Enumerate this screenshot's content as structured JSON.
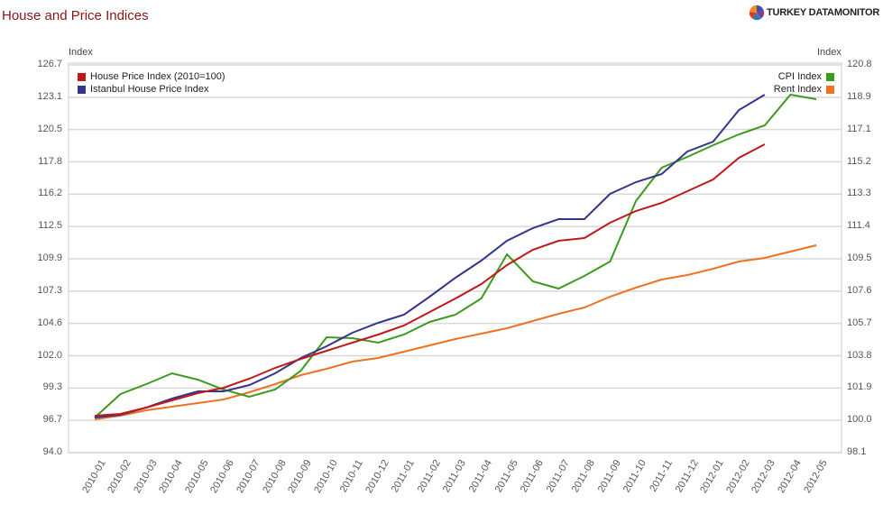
{
  "header": {
    "title": "House and Price Indices",
    "brand_part1": "TURKEY DATA ",
    "brand_part2": "MONITOR",
    "brand_icon": "pie-logo-icon"
  },
  "axes": {
    "left_title": "Index",
    "right_title": "Index",
    "left_ticks": [
      "126.7",
      "123.1",
      "120.5",
      "117.8",
      "116.2",
      "112.5",
      "109.9",
      "107.3",
      "104.6",
      "102.0",
      "99.3",
      "96.7",
      "94.0"
    ],
    "right_ticks": [
      "120.8",
      "118.9",
      "117.1",
      "115.2",
      "113.3",
      "111.4",
      "109.5",
      "107.6",
      "105.7",
      "103.8",
      "101.9",
      "100.0",
      "98.1"
    ]
  },
  "legend": {
    "left": [
      {
        "label": "House Price Index (2010=100)",
        "color": "#c0181a"
      },
      {
        "label": "Istanbul House Price Index",
        "color": "#34358c"
      }
    ],
    "right": [
      {
        "label": "CPI Index",
        "color": "#3c9a1c"
      },
      {
        "label": "Rent Index",
        "color": "#ee7220"
      }
    ]
  },
  "chart_data": {
    "type": "line",
    "title": "House and Price Indices",
    "xlabel": "",
    "ylabel": "Index",
    "ylabel_right": "Index",
    "ylim": [
      94.0,
      126.7
    ],
    "ylim_right": [
      98.1,
      120.8
    ],
    "grid": true,
    "legend_position": "top-left and top-right inside plot",
    "x": [
      "2010-01",
      "2010-02",
      "2010-03",
      "2010-04",
      "2010-05",
      "2010-06",
      "2010-07",
      "2010-08",
      "2010-09",
      "2010-10",
      "2010-11",
      "2010-12",
      "2011-01",
      "2011-02",
      "2011-03",
      "2011-04",
      "2011-05",
      "2011-06",
      "2011-07",
      "2011-08",
      "2011-09",
      "2011-10",
      "2011-11",
      "2011-12",
      "2012-01",
      "2012-02",
      "2012-03",
      "2012-04",
      "2012-05"
    ],
    "series": [
      {
        "name": "House Price Index (2010=100)",
        "axis": "left",
        "color": "#c0181a",
        "values": [
          96.9,
          97.0,
          97.6,
          98.2,
          98.8,
          99.3,
          100.0,
          100.9,
          101.7,
          102.4,
          103.1,
          103.8,
          104.5,
          105.7,
          106.8,
          108.0,
          109.6,
          110.9,
          111.7,
          111.9,
          113.2,
          114.2,
          114.9,
          115.9,
          116.9,
          118.7,
          119.8
        ]
      },
      {
        "name": "Istanbul House Price Index",
        "axis": "left",
        "color": "#34358c",
        "values": [
          96.7,
          97.0,
          97.6,
          98.3,
          98.9,
          98.9,
          99.5,
          100.5,
          101.8,
          102.8,
          103.9,
          104.8,
          105.5,
          107.0,
          108.6,
          110.1,
          111.7,
          112.8,
          113.6,
          113.6,
          115.7,
          116.7,
          117.4,
          119.3,
          120.2,
          122.8,
          124.1
        ]
      },
      {
        "name": "CPI Index",
        "axis": "right",
        "color": "#3c9a1c",
        "values": [
          100.1,
          101.5,
          102.1,
          102.7,
          102.3,
          101.8,
          101.3,
          101.8,
          102.9,
          104.9,
          104.8,
          104.5,
          105.0,
          105.7,
          106.2,
          107.1,
          109.7,
          108.1,
          107.7,
          108.4,
          109.3,
          112.8,
          114.8,
          115.4,
          116.1,
          116.7,
          117.3,
          119.1,
          118.8
        ]
      },
      {
        "name": "Rent Index",
        "axis": "right",
        "color": "#ee7220",
        "values": [
          100.0,
          100.2,
          100.5,
          100.7,
          100.9,
          101.2,
          101.6,
          102.1,
          102.6,
          103.0,
          103.4,
          103.6,
          104.0,
          104.4,
          104.7,
          105.1,
          105.4,
          105.8,
          106.2,
          106.6,
          107.3,
          107.8,
          108.3,
          108.5,
          108.9,
          109.3,
          109.5,
          109.9,
          110.3
        ]
      }
    ],
    "pixel_paths": {
      "house": [
        461,
        459,
        452,
        444,
        436,
        430,
        420,
        408,
        398,
        389,
        380,
        371,
        361,
        346,
        331,
        315,
        294,
        277,
        267,
        264,
        247,
        234,
        225,
        212,
        199,
        175,
        160
      ],
      "istanbul": [
        463,
        460,
        452,
        442,
        434,
        434,
        427,
        414,
        397,
        384,
        369,
        358,
        349,
        329,
        308,
        289,
        267,
        253,
        243,
        243,
        215,
        202,
        193,
        168,
        157,
        122,
        105
      ],
      "cpi": [
        463,
        437,
        426,
        414,
        421,
        432,
        440,
        432,
        411,
        374,
        375,
        380,
        371,
        357,
        349,
        331,
        282,
        312,
        320,
        306,
        290,
        223,
        186,
        174,
        161,
        149,
        139,
        105,
        110
      ],
      "rent": [
        465,
        461,
        455,
        451,
        447,
        443,
        435,
        426,
        416,
        409,
        401,
        397,
        390,
        383,
        376,
        370,
        364,
        356,
        348,
        341,
        329,
        319,
        310,
        305,
        298,
        290,
        286,
        279,
        272
      ]
    }
  }
}
